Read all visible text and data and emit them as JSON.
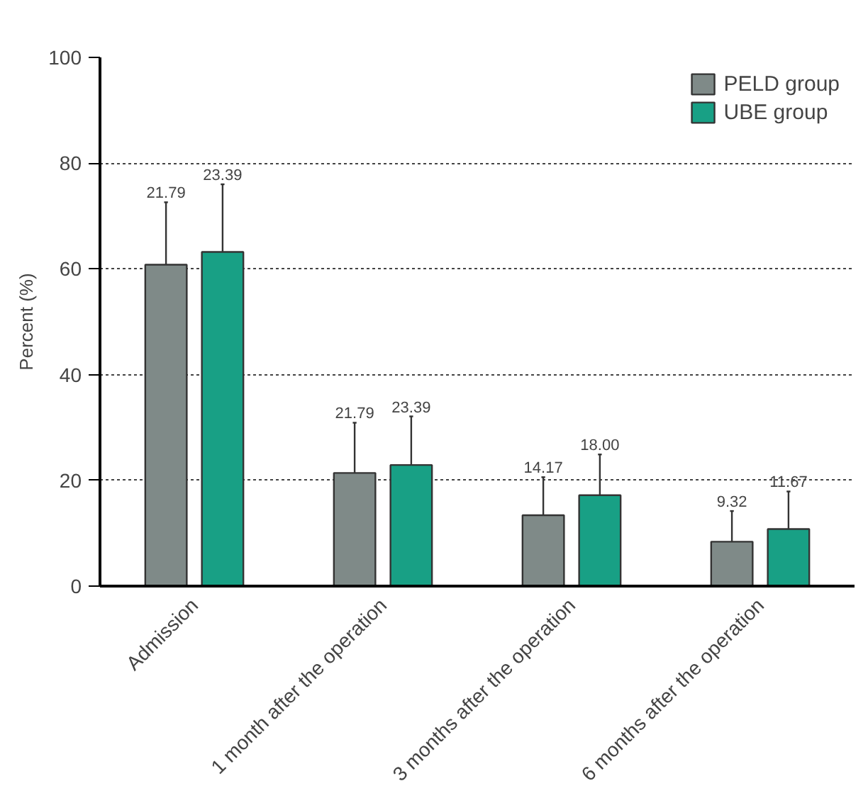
{
  "chart_data": {
    "type": "bar",
    "ylabel": "Percent (%)",
    "categories": [
      "Admission",
      "1 month after the operation",
      "3 months after the operation",
      "6 months after the operation"
    ],
    "series": [
      {
        "name": "PELD group",
        "color": "#7f8a88",
        "values": [
          60.8,
          21.4,
          13.4,
          8.4
        ],
        "errors": [
          [
            60.8,
            72.6
          ],
          [
            21.4,
            30.9
          ],
          [
            13.4,
            20.6
          ],
          [
            8.4,
            14.2
          ]
        ]
      },
      {
        "name": "UBE group",
        "color": "#18a085",
        "values": [
          63.2,
          22.9,
          17.2,
          10.8
        ],
        "errors": [
          [
            63.2,
            76.0
          ],
          [
            22.9,
            32.1
          ],
          [
            17.2,
            24.9
          ],
          [
            10.8,
            17.9
          ]
        ]
      }
    ],
    "annotations": [
      "21.79",
      "23.39",
      "21.79",
      "23.39",
      "14.17",
      "18.00",
      "9.32",
      "11.67"
    ],
    "ylim": [
      0,
      100
    ],
    "yticks": [
      0,
      20,
      40,
      60,
      80,
      100
    ],
    "grid": "y",
    "legend": "top right"
  }
}
